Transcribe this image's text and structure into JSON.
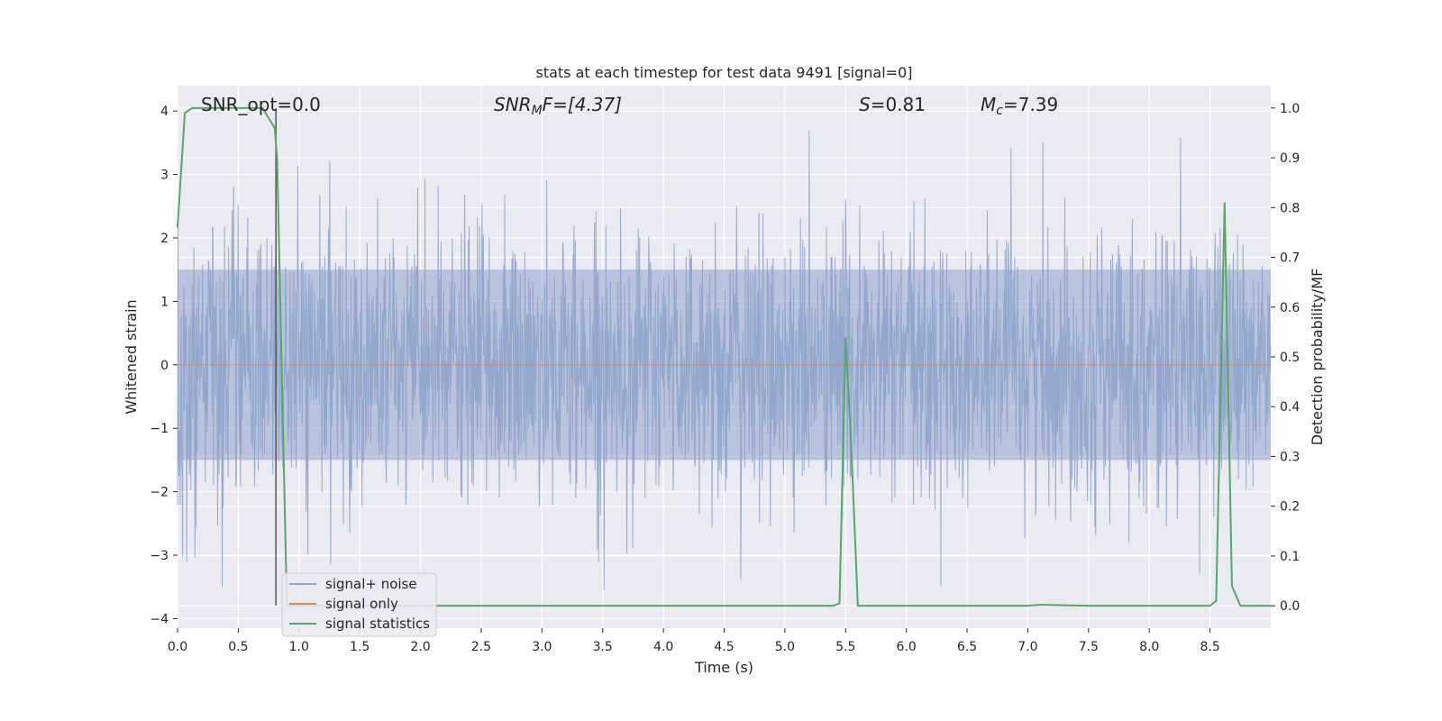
{
  "chart_data": {
    "type": "line",
    "title": "stats at each timestep for test data 9491 [signal=0]",
    "xlabel": "Time (s)",
    "ylabel_left": "Whitened strain",
    "ylabel_right": "Detection probability/MF",
    "xlim": [
      0.0,
      9.0
    ],
    "ylim_left": [
      -4.15,
      4.4
    ],
    "ylim_right": [
      -0.045,
      1.045
    ],
    "x_ticks": [
      0.0,
      0.5,
      1.0,
      1.5,
      2.0,
      2.5,
      3.0,
      3.5,
      4.0,
      4.5,
      5.0,
      5.5,
      6.0,
      6.5,
      7.0,
      7.5,
      8.0,
      8.5
    ],
    "x_tick_labels": [
      "0.0",
      "0.5",
      "1.0",
      "1.5",
      "2.0",
      "2.5",
      "3.0",
      "3.5",
      "4.0",
      "4.5",
      "5.0",
      "5.5",
      "6.0",
      "6.5",
      "7.0",
      "7.5",
      "8.0",
      "8.5"
    ],
    "y_left_ticks": [
      4,
      3,
      2,
      1,
      0,
      -1,
      -2,
      -3,
      -4
    ],
    "y_left_tick_labels": [
      "4",
      "3",
      "2",
      "1",
      "0",
      "−1",
      "−2",
      "−3",
      "−4"
    ],
    "y_right_ticks": [
      1.0,
      0.9,
      0.8,
      0.7,
      0.6,
      0.5,
      0.4,
      0.3,
      0.2,
      0.1,
      0.0
    ],
    "y_right_tick_labels": [
      "1.0",
      "0.9",
      "0.8",
      "0.7",
      "0.6",
      "0.5",
      "0.4",
      "0.3",
      "0.2",
      "0.1",
      "0.0"
    ],
    "grid": true,
    "legend_position": "lower-left",
    "annotations": {
      "snr_opt": "SNR_opt=0.0",
      "snr_mf_main": "SNR",
      "snr_mf_sub": "M",
      "snr_mf_rest": "F=[4.37]",
      "s_main": "S",
      "s_rest": "=0.81",
      "mc_main": "M",
      "mc_sub": "c",
      "mc_rest": "=7.39"
    },
    "vertical_marker_x": 0.81,
    "series": [
      {
        "name": "signal+ noise",
        "color": "#8fa3cc",
        "kind": "noise",
        "envelope_lower": -1.5,
        "envelope_upper": 1.5,
        "peak_range": [
          -4.0,
          4.0
        ]
      },
      {
        "name": "signal only",
        "color": "#dd8452",
        "kind": "flat",
        "value": 0.0
      },
      {
        "name": "signal statistics",
        "color": "#55a868",
        "kind": "probability",
        "x": [
          0.0,
          0.06,
          0.12,
          0.2,
          0.3,
          0.5,
          0.7,
          0.8,
          0.82,
          0.9,
          1.0,
          2.0,
          3.0,
          4.0,
          5.0,
          5.4,
          5.45,
          5.5,
          5.55,
          5.6,
          6.0,
          7.0,
          7.1,
          7.5,
          8.0,
          8.5,
          8.55,
          8.62,
          8.68,
          8.75,
          9.0
        ],
        "y": [
          0.76,
          0.99,
          1.0,
          1.0,
          1.0,
          1.0,
          1.0,
          0.96,
          0.9,
          0.0,
          0.0,
          0.0,
          0.0,
          0.0,
          0.0,
          0.0,
          0.005,
          0.54,
          0.3,
          0.0,
          0.0,
          0.0,
          0.002,
          0.0,
          0.0,
          0.0,
          0.01,
          0.81,
          0.04,
          0.0,
          0.0
        ]
      }
    ]
  }
}
